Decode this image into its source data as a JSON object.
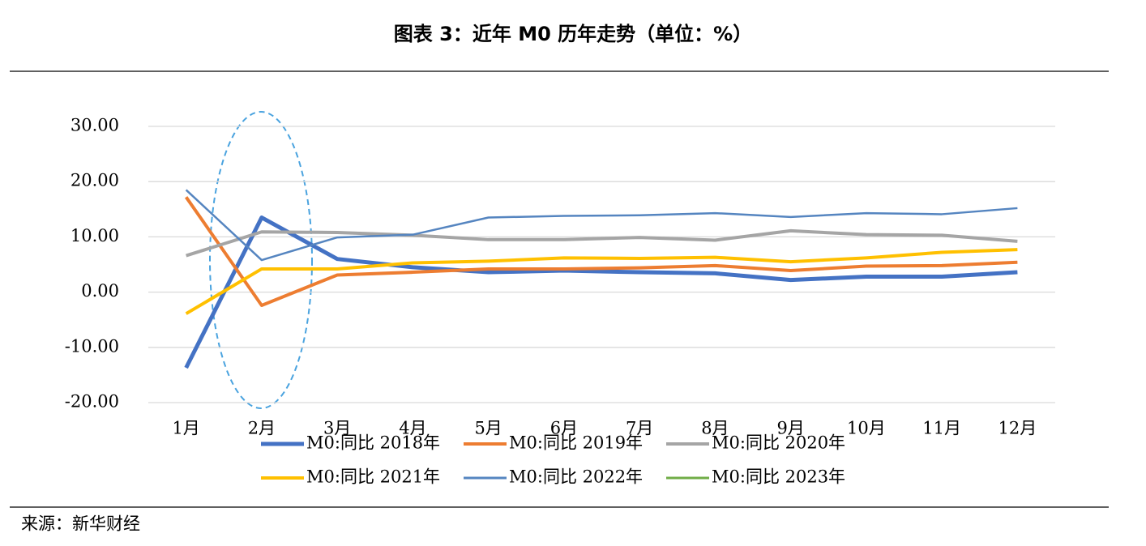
{
  "chart_data": {
    "type": "line",
    "title": "图表 3：近年 M0 历年走势（单位：%）",
    "source": "来源：新华财经",
    "categories": [
      "1月",
      "2月",
      "3月",
      "4月",
      "5月",
      "6月",
      "7月",
      "8月",
      "9月",
      "10月",
      "11月",
      "12月"
    ],
    "series": [
      {
        "name": "M0:同比 2018年",
        "color": "#4472c4",
        "values": [
          -13.7,
          13.5,
          6.0,
          4.5,
          3.6,
          3.9,
          3.6,
          3.4,
          2.2,
          2.8,
          2.8,
          3.6
        ]
      },
      {
        "name": "M0:同比 2019年",
        "color": "#ed7d31",
        "values": [
          17.2,
          -2.4,
          3.1,
          3.6,
          4.2,
          4.2,
          4.4,
          4.8,
          3.9,
          4.7,
          4.8,
          5.4
        ]
      },
      {
        "name": "M0:同比 2020年",
        "color": "#a5a5a5",
        "values": [
          6.6,
          10.9,
          10.8,
          10.3,
          9.5,
          9.5,
          9.9,
          9.4,
          11.1,
          10.4,
          10.3,
          9.2
        ]
      },
      {
        "name": "M0:同比 2021年",
        "color": "#ffc000",
        "values": [
          -3.9,
          4.2,
          4.2,
          5.3,
          5.6,
          6.2,
          6.1,
          6.3,
          5.5,
          6.2,
          7.2,
          7.7
        ]
      },
      {
        "name": "M0:同比 2022年",
        "color": "#5585c0",
        "values": [
          18.5,
          5.8,
          9.9,
          10.4,
          13.5,
          13.8,
          13.9,
          14.3,
          13.6,
          14.3,
          14.1,
          15.2
        ]
      },
      {
        "name": "M0:同比 2023年",
        "color": "#70ad47",
        "values": [
          null,
          null,
          null,
          null,
          null,
          null,
          null,
          null,
          null,
          null,
          null,
          null
        ]
      }
    ],
    "ylim": [
      -20,
      30
    ],
    "yticks": [
      {
        "value": -20,
        "label": "-20.00"
      },
      {
        "value": -10,
        "label": "-10.00"
      },
      {
        "value": 0,
        "label": "0.00"
      },
      {
        "value": 10,
        "label": "10.00"
      },
      {
        "value": 20,
        "label": "20.00"
      },
      {
        "value": 30,
        "label": "30.00"
      }
    ],
    "grid": true,
    "legend": "bottom"
  }
}
